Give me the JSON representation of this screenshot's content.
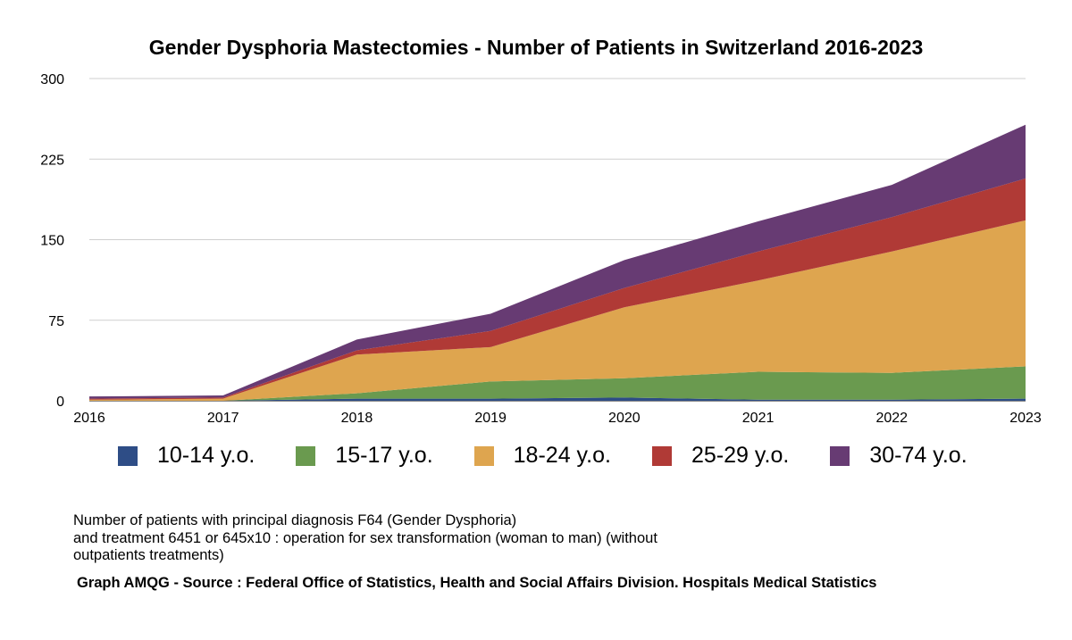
{
  "chart_data": {
    "type": "area",
    "stacked": true,
    "title": "Gender Dysphoria Mastectomies - Number of Patients in Switzerland 2016-2023",
    "x": [
      "2016",
      "2017",
      "2018",
      "2019",
      "2020",
      "2021",
      "2022",
      "2023"
    ],
    "ylim": [
      0,
      300
    ],
    "yticks": [
      "0",
      "75",
      "150",
      "225",
      "300"
    ],
    "grid": true,
    "legend_position": "bottom",
    "series": [
      {
        "name": "10-14 y.o.",
        "color": "#2e4d86",
        "values": [
          0,
          0,
          2,
          2,
          3,
          1,
          1,
          2
        ]
      },
      {
        "name": "15-17 y.o.",
        "color": "#6a9a4f",
        "values": [
          0,
          0,
          5,
          16,
          18,
          26,
          25,
          30
        ]
      },
      {
        "name": "18-24 y.o.",
        "color": "#dea54f",
        "values": [
          1,
          2,
          36,
          32,
          66,
          85,
          113,
          136
        ]
      },
      {
        "name": "25-29 y.o.",
        "color": "#b03a36",
        "values": [
          1,
          1,
          4,
          15,
          18,
          27,
          32,
          39
        ]
      },
      {
        "name": "30-74 y.o.",
        "color": "#673b73",
        "values": [
          2,
          2,
          10,
          16,
          26,
          28,
          30,
          50
        ]
      }
    ]
  },
  "note": {
    "line1": "Number of patients with principal diagnosis F64 (Gender Dysphoria)",
    "line2": "and treatment 6451 or 645x10 : operation for sex transformation (woman to man) (without outpatients treatments)"
  },
  "source": "Graph AMQG - Source : Federal Office of Statistics, Health and Social Affairs Division. Hospitals Medical Statistics"
}
